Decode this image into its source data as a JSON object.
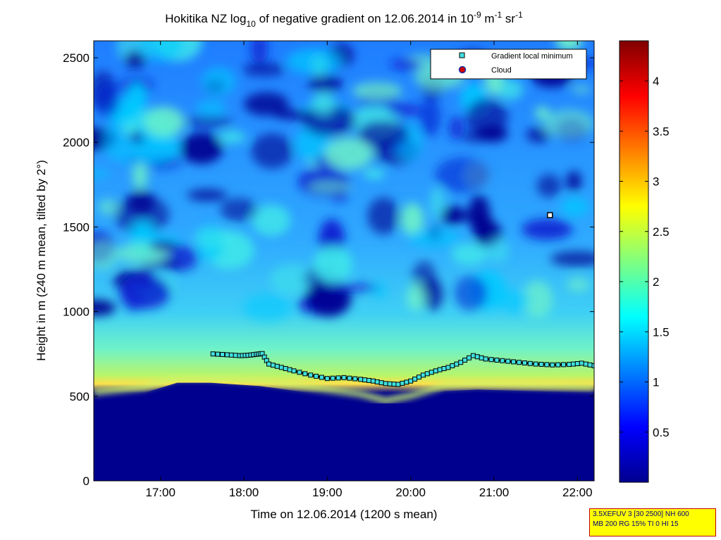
{
  "chart_data": {
    "type": "heatmap",
    "title": {
      "prefix": "Hokitika NZ log",
      "log_base": "10",
      "middle": " of negative gradient on 12.06.2014 in 10",
      "exp1": "-9",
      "mid2": " m",
      "exp2": "-1",
      "mid3": " sr",
      "exp3": "-1"
    },
    "xlabel": "Time on 12.06.2014 (1200 s mean)",
    "ylabel": "Height in m (240 m mean, tilted by 2°)",
    "x_range_hours": [
      16.2,
      22.2
    ],
    "y_range_m": [
      0,
      2600
    ],
    "x_ticks": [
      {
        "value": 17,
        "label": "17:00"
      },
      {
        "value": 18,
        "label": "18:00"
      },
      {
        "value": 19,
        "label": "19:00"
      },
      {
        "value": 20,
        "label": "20:00"
      },
      {
        "value": 21,
        "label": "21:00"
      },
      {
        "value": 22,
        "label": "22:00"
      }
    ],
    "y_ticks": [
      {
        "value": 0,
        "label": "0"
      },
      {
        "value": 500,
        "label": "500"
      },
      {
        "value": 1000,
        "label": "1000"
      },
      {
        "value": 1500,
        "label": "1500"
      },
      {
        "value": 2000,
        "label": "2000"
      },
      {
        "value": 2500,
        "label": "2500"
      }
    ],
    "colorbar": {
      "colormap": "jet",
      "range": [
        0,
        4.4
      ],
      "ticks": [
        {
          "value": 0.5,
          "label": "0.5"
        },
        {
          "value": 1,
          "label": "1"
        },
        {
          "value": 1.5,
          "label": "1.5"
        },
        {
          "value": 2,
          "label": "2"
        },
        {
          "value": 2.5,
          "label": "2.5"
        },
        {
          "value": 3,
          "label": "3"
        },
        {
          "value": 3.5,
          "label": "3.5"
        },
        {
          "value": 4,
          "label": "4"
        }
      ]
    },
    "legend": {
      "position": "top-right",
      "entries": [
        {
          "label": "Gradient local minimum",
          "marker": "square",
          "color": "#40e0e0"
        },
        {
          "label": "Cloud",
          "marker": "circle",
          "color": "#cc0000"
        }
      ]
    },
    "series": [
      {
        "name": "Gradient local minimum",
        "points": [
          [
            17.63,
            750
          ],
          [
            17.8,
            745
          ],
          [
            17.95,
            740
          ],
          [
            18.05,
            742
          ],
          [
            18.15,
            748
          ],
          [
            18.22,
            752
          ],
          [
            18.3,
            690
          ],
          [
            18.45,
            670
          ],
          [
            18.6,
            650
          ],
          [
            18.8,
            625
          ],
          [
            19.0,
            605
          ],
          [
            19.2,
            610
          ],
          [
            19.4,
            600
          ],
          [
            19.55,
            590
          ],
          [
            19.7,
            575
          ],
          [
            19.85,
            570
          ],
          [
            20.0,
            590
          ],
          [
            20.15,
            625
          ],
          [
            20.3,
            650
          ],
          [
            20.45,
            670
          ],
          [
            20.6,
            700
          ],
          [
            20.75,
            740
          ],
          [
            20.9,
            720
          ],
          [
            21.1,
            710
          ],
          [
            21.3,
            700
          ],
          [
            21.5,
            690
          ],
          [
            21.7,
            685
          ],
          [
            21.9,
            688
          ],
          [
            22.05,
            695
          ],
          [
            22.2,
            680
          ]
        ],
        "outlier": [
          21.67,
          1570
        ]
      }
    ],
    "heatmap_features": {
      "low_dark_layer_top_m": [
        [
          16.2,
          490
        ],
        [
          16.8,
          520
        ],
        [
          17.2,
          580
        ],
        [
          17.6,
          580
        ],
        [
          18.2,
          560
        ],
        [
          18.8,
          520
        ],
        [
          19.4,
          480
        ],
        [
          19.7,
          440
        ],
        [
          20.0,
          470
        ],
        [
          20.4,
          530
        ],
        [
          20.8,
          540
        ],
        [
          21.5,
          530
        ],
        [
          22.2,
          520
        ]
      ]
    }
  },
  "footnote": {
    "line1": "3.5XEFUV 3 [30 2500] NH 600",
    "line2": "MB 200 RG 15% TI 0 HI 15"
  }
}
